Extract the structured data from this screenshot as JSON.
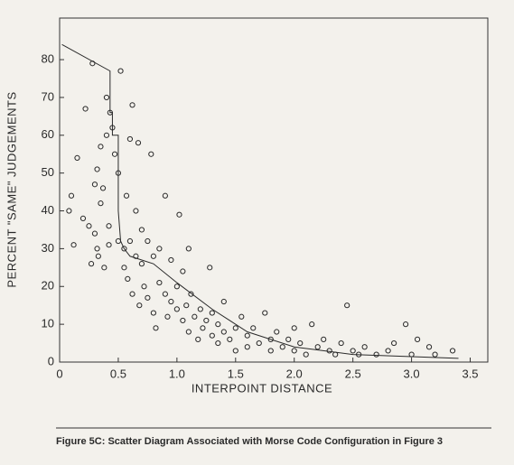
{
  "chart_data": {
    "type": "scatter",
    "xlabel": "INTERPOINT DISTANCE",
    "ylabel": "PERCENT \"SAME\" JUDGEMENTS",
    "caption": "Figure 5C: Scatter Diagram Associated with Morse Code Configuration in Figure 3",
    "xlim": [
      0,
      3.65
    ],
    "ylim": [
      0,
      91
    ],
    "xticks": [
      0,
      0.5,
      {
        "value": 1,
        "label": "1.0"
      },
      1.5,
      {
        "value": 2,
        "label": "2.0"
      },
      2.5,
      {
        "value": 3,
        "label": "3.0"
      },
      3.5
    ],
    "yticks": [
      0,
      10,
      20,
      30,
      40,
      50,
      60,
      70,
      80
    ],
    "color": "#2a2a2a",
    "points": {
      "x": [
        0.08,
        0.1,
        0.12,
        0.15,
        0.2,
        0.22,
        0.25,
        0.27,
        0.28,
        0.3,
        0.3,
        0.32,
        0.32,
        0.33,
        0.35,
        0.35,
        0.37,
        0.38,
        0.4,
        0.4,
        0.42,
        0.42,
        0.43,
        0.45,
        0.47,
        0.5,
        0.5,
        0.52,
        0.55,
        0.55,
        0.57,
        0.58,
        0.6,
        0.6,
        0.62,
        0.62,
        0.65,
        0.65,
        0.67,
        0.68,
        0.7,
        0.7,
        0.72,
        0.75,
        0.75,
        0.78,
        0.8,
        0.8,
        0.82,
        0.85,
        0.85,
        0.9,
        0.9,
        0.92,
        0.95,
        0.95,
        1.0,
        1.0,
        1.02,
        1.05,
        1.05,
        1.08,
        1.1,
        1.1,
        1.12,
        1.15,
        1.18,
        1.2,
        1.22,
        1.25,
        1.28,
        1.3,
        1.3,
        1.35,
        1.35,
        1.4,
        1.4,
        1.45,
        1.5,
        1.5,
        1.55,
        1.6,
        1.6,
        1.65,
        1.7,
        1.75,
        1.8,
        1.8,
        1.85,
        1.9,
        1.95,
        2.0,
        2.0,
        2.05,
        2.1,
        2.15,
        2.2,
        2.25,
        2.3,
        2.35,
        2.4,
        2.45,
        2.5,
        2.55,
        2.6,
        2.7,
        2.8,
        2.85,
        2.95,
        3.0,
        3.05,
        3.15,
        3.2,
        3.35
      ],
      "y": [
        40,
        44,
        31,
        54,
        38,
        67,
        36,
        26,
        79,
        34,
        47,
        51,
        30,
        28,
        42,
        57,
        46,
        25,
        60,
        70,
        36,
        31,
        66,
        62,
        55,
        32,
        50,
        77,
        30,
        25,
        44,
        22,
        59,
        32,
        68,
        18,
        28,
        40,
        58,
        15,
        35,
        26,
        20,
        32,
        17,
        55,
        28,
        13,
        9,
        21,
        30,
        44,
        18,
        12,
        27,
        16,
        20,
        14,
        39,
        11,
        24,
        15,
        8,
        30,
        18,
        12,
        6,
        14,
        9,
        11,
        25,
        7,
        13,
        5,
        10,
        8,
        16,
        6,
        9,
        3,
        12,
        7,
        4,
        9,
        5,
        13,
        6,
        3,
        8,
        4,
        6,
        3,
        9,
        5,
        2,
        10,
        4,
        6,
        3,
        2,
        5,
        15,
        3,
        2,
        4,
        2,
        3,
        5,
        10,
        2,
        6,
        4,
        2,
        3
      ]
    },
    "line": {
      "x": [
        0.02,
        0.43,
        0.43,
        0.45,
        0.45,
        0.5,
        0.5,
        0.52,
        0.55,
        0.6,
        0.8,
        1.0,
        1.3,
        1.6,
        2.0,
        2.5,
        3.4
      ],
      "y": [
        84,
        77,
        66,
        66,
        60,
        60,
        40,
        32,
        30,
        28,
        26,
        21,
        14,
        8,
        4,
        2,
        1
      ]
    }
  }
}
